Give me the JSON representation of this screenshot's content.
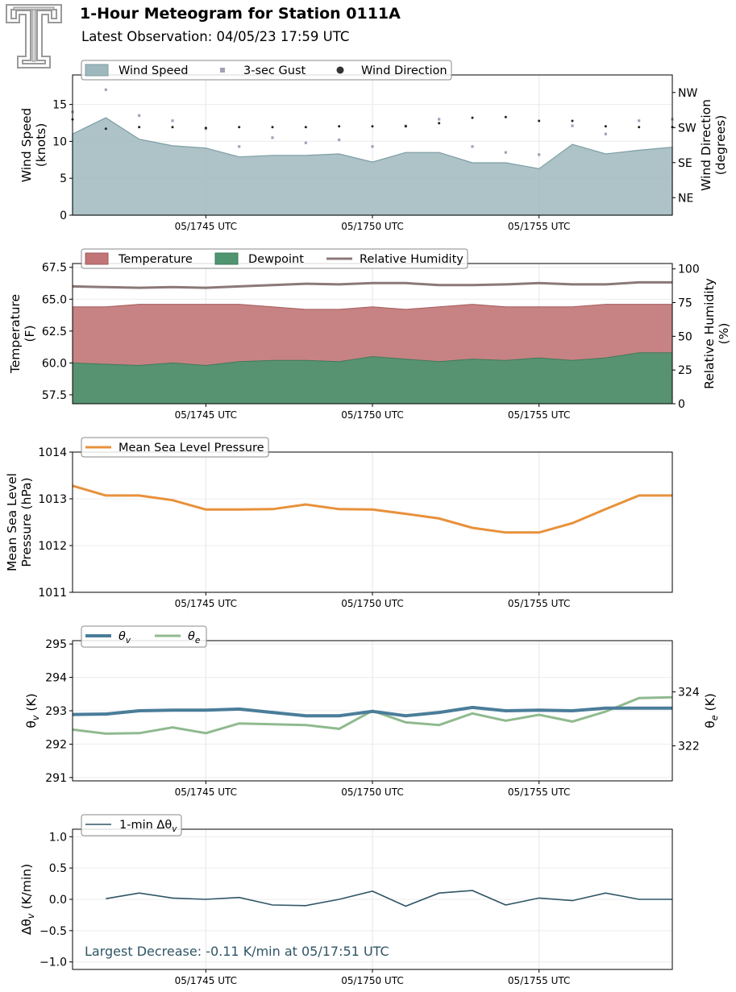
{
  "header": {
    "title": "1-Hour Meteogram for Station 0111A",
    "subtitle": "Latest Observation: 04/05/23 17:59 UTC",
    "logo": "texas-tech-double-t-logo"
  },
  "colors": {
    "wind_fill": "#9fb8bd",
    "gust": "#a0a0b8",
    "direction": "#222222",
    "temperature": "#c17576",
    "dewpoint": "#4e9570",
    "relative_humidity": "#8c7878",
    "pressure": "#e8913b",
    "theta_v": "#4a7d99",
    "theta_e": "#8fba8f",
    "dtheta": "#2f5566",
    "annotation": "#2f5566"
  },
  "chart_data": [
    {
      "id": "wind",
      "type": "area",
      "x": [
        "17:41",
        "17:42",
        "17:43",
        "17:44",
        "17:45",
        "17:46",
        "17:47",
        "17:48",
        "17:49",
        "17:50",
        "17:51",
        "17:52",
        "17:53",
        "17:54",
        "17:55",
        "17:56",
        "17:57",
        "17:58",
        "17:59"
      ],
      "xticks": [
        "05/1745 UTC",
        "05/1750 UTC",
        "05/1755 UTC"
      ],
      "ylabel_lines": [
        "Wind Speed",
        "(knots)"
      ],
      "y2label_lines": [
        "Wind Direction",
        "(degrees)"
      ],
      "ylim": [
        0,
        19
      ],
      "yticks": [
        "0",
        "5",
        "10",
        "15"
      ],
      "y2lim": [
        0,
        360
      ],
      "y2ticks": [
        "NE",
        "SE",
        "SW",
        "NW"
      ],
      "grid": true,
      "legend": [
        "Wind Speed",
        "3-sec Gust",
        "Wind Direction"
      ],
      "series": [
        {
          "name": "Wind Speed",
          "values": [
            11.0,
            13.2,
            10.3,
            9.4,
            9.1,
            7.9,
            8.1,
            8.1,
            8.3,
            7.2,
            8.5,
            8.5,
            7.1,
            7.1,
            6.3,
            9.6,
            8.3,
            8.8,
            9.2
          ]
        },
        {
          "name": "3-sec Gust",
          "values": [
            14.0,
            17.0,
            13.5,
            12.8,
            11.7,
            9.3,
            10.5,
            9.8,
            10.2,
            9.3,
            12.1,
            13.0,
            9.3,
            8.5,
            8.2,
            12.1,
            11.0,
            12.8,
            13.0
          ]
        },
        {
          "name": "Wind Direction",
          "values": [
            246,
            222,
            226,
            226,
            224,
            226,
            226,
            226,
            228,
            228,
            228,
            236,
            250,
            252,
            242,
            242,
            228,
            226,
            226
          ]
        }
      ]
    },
    {
      "id": "thermo",
      "type": "area",
      "x": [
        "17:41",
        "17:42",
        "17:43",
        "17:44",
        "17:45",
        "17:46",
        "17:47",
        "17:48",
        "17:49",
        "17:50",
        "17:51",
        "17:52",
        "17:53",
        "17:54",
        "17:55",
        "17:56",
        "17:57",
        "17:58",
        "17:59"
      ],
      "xticks": [
        "05/1745 UTC",
        "05/1750 UTC",
        "05/1755 UTC"
      ],
      "ylabel_lines": [
        "Temperature",
        "(F)"
      ],
      "y2label_lines": [
        "Relative Humidity",
        "(%)"
      ],
      "ylim": [
        56.8,
        67.8
      ],
      "yticks": [
        "57.5",
        "60.0",
        "62.5",
        "65.0",
        "67.5"
      ],
      "y2lim": [
        0,
        104
      ],
      "y2ticks": [
        "0",
        "25",
        "50",
        "75",
        "100"
      ],
      "grid": true,
      "legend": [
        "Temperature",
        "Dewpoint",
        "Relative Humidity"
      ],
      "series": [
        {
          "name": "Temperature",
          "values": [
            64.4,
            64.4,
            64.6,
            64.6,
            64.6,
            64.6,
            64.4,
            64.2,
            64.2,
            64.4,
            64.2,
            64.4,
            64.6,
            64.4,
            64.4,
            64.4,
            64.6,
            64.6,
            64.6
          ]
        },
        {
          "name": "Dewpoint",
          "values": [
            60.0,
            59.9,
            59.8,
            60.0,
            59.8,
            60.1,
            60.2,
            60.2,
            60.1,
            60.5,
            60.3,
            60.1,
            60.3,
            60.2,
            60.4,
            60.2,
            60.4,
            60.8,
            60.8
          ]
        },
        {
          "name": "Relative Humidity",
          "values": [
            87,
            86.5,
            86,
            86.5,
            86,
            87,
            88,
            89,
            88.5,
            89.5,
            89.5,
            88,
            88,
            88.5,
            89.5,
            88.5,
            88.5,
            90,
            90
          ]
        }
      ]
    },
    {
      "id": "pressure",
      "type": "line",
      "x": [
        "17:41",
        "17:42",
        "17:43",
        "17:44",
        "17:45",
        "17:46",
        "17:47",
        "17:48",
        "17:49",
        "17:50",
        "17:51",
        "17:52",
        "17:53",
        "17:54",
        "17:55",
        "17:56",
        "17:57",
        "17:58",
        "17:59"
      ],
      "xticks": [
        "05/1745 UTC",
        "05/1750 UTC",
        "05/1755 UTC"
      ],
      "ylabel_lines": [
        "Mean Sea Level",
        "Pressure (hPa)"
      ],
      "ylim": [
        1011,
        1014
      ],
      "yticks": [
        "1011",
        "1012",
        "1013",
        "1014"
      ],
      "grid": true,
      "legend": [
        "Mean Sea Level Pressure"
      ],
      "series": [
        {
          "name": "Mean Sea Level Pressure",
          "values": [
            1013.28,
            1013.07,
            1013.07,
            1012.97,
            1012.77,
            1012.77,
            1012.78,
            1012.88,
            1012.78,
            1012.77,
            1012.68,
            1012.58,
            1012.38,
            1012.28,
            1012.28,
            1012.48,
            1012.78,
            1013.07,
            1013.07
          ]
        }
      ]
    },
    {
      "id": "theta",
      "type": "line",
      "x": [
        "17:41",
        "17:42",
        "17:43",
        "17:44",
        "17:45",
        "17:46",
        "17:47",
        "17:48",
        "17:49",
        "17:50",
        "17:51",
        "17:52",
        "17:53",
        "17:54",
        "17:55",
        "17:56",
        "17:57",
        "17:58",
        "17:59"
      ],
      "xticks": [
        "05/1745 UTC",
        "05/1750 UTC",
        "05/1755 UTC"
      ],
      "ylabel": "θv (K)",
      "y2label": "θe (K)",
      "ylim": [
        290.9,
        295.1
      ],
      "yticks": [
        "291",
        "292",
        "293",
        "294",
        "295"
      ],
      "y2lim": [
        320.7,
        325.9
      ],
      "y2ticks": [
        "322",
        "324"
      ],
      "grid": true,
      "legend": [
        "θv",
        "θe"
      ],
      "series": [
        {
          "name": "θv",
          "values": [
            292.89,
            292.9,
            293.0,
            293.02,
            293.02,
            293.05,
            292.95,
            292.85,
            292.85,
            292.98,
            292.85,
            292.95,
            293.1,
            293.0,
            293.02,
            293.0,
            293.08,
            293.08,
            293.08
          ]
        },
        {
          "name": "θe",
          "values": [
            322.6,
            322.45,
            322.47,
            322.68,
            322.47,
            322.83,
            322.8,
            322.77,
            322.63,
            323.3,
            322.87,
            322.77,
            323.2,
            322.93,
            323.15,
            322.9,
            323.27,
            323.77,
            323.8
          ]
        }
      ]
    },
    {
      "id": "dtheta",
      "type": "line",
      "x": [
        "17:41",
        "17:42",
        "17:43",
        "17:44",
        "17:45",
        "17:46",
        "17:47",
        "17:48",
        "17:49",
        "17:50",
        "17:51",
        "17:52",
        "17:53",
        "17:54",
        "17:55",
        "17:56",
        "17:57",
        "17:58",
        "17:59"
      ],
      "xticks": [
        "05/1745 UTC",
        "05/1750 UTC",
        "05/1755 UTC"
      ],
      "ylabel": "Δθv (K/min)",
      "ylim": [
        -1.12,
        1.12
      ],
      "yticks": [
        "−1.0",
        "−0.5",
        "0.0",
        "0.5",
        "1.0"
      ],
      "grid": true,
      "legend": [
        "1-min Δθv"
      ],
      "annotation": "Largest Decrease: -0.11 K/min at 05/17:51 UTC",
      "series": [
        {
          "name": "1-min Δθv",
          "values": [
            null,
            0.01,
            0.1,
            0.02,
            0.0,
            0.03,
            -0.09,
            -0.1,
            0.0,
            0.13,
            -0.11,
            0.1,
            0.14,
            -0.09,
            0.02,
            -0.02,
            0.1,
            0.0,
            0.0
          ]
        }
      ]
    }
  ]
}
